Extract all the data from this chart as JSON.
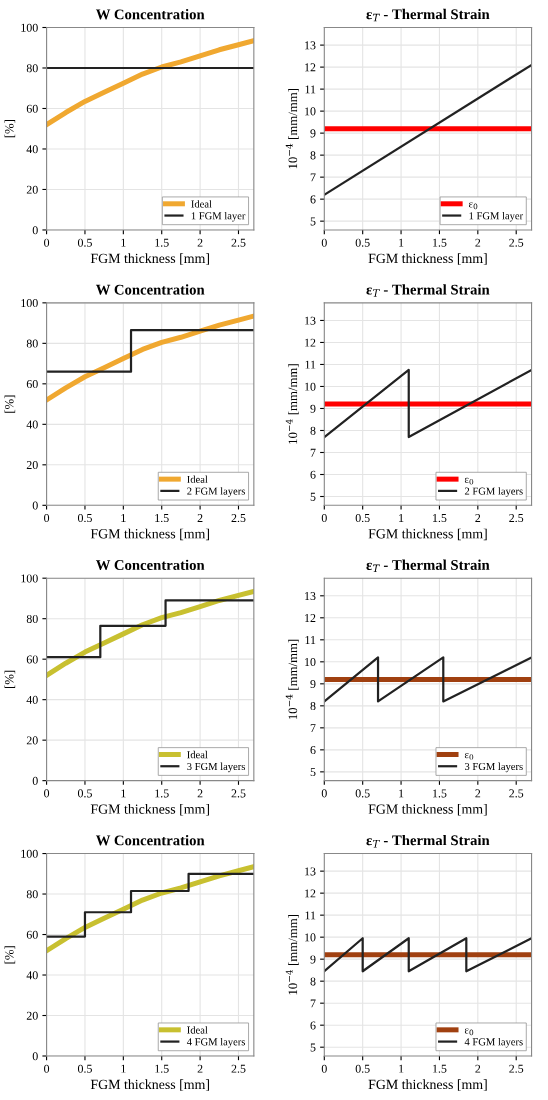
{
  "chart_data": [
    {
      "type": "line",
      "title": "W Concentration",
      "xlabel": "FGM thickness [mm]",
      "ylabel": "[%]",
      "xlim": [
        0,
        2.7
      ],
      "ylim": [
        0,
        100
      ],
      "xticks": [
        0,
        0.5,
        1,
        1.5,
        2,
        2.5
      ],
      "yticks": [
        0,
        20,
        40,
        60,
        80,
        100
      ],
      "grid": true,
      "legend": "bottom right",
      "series": [
        {
          "name": "Ideal",
          "color": "#f0a830",
          "x": [
            0,
            0.25,
            0.5,
            0.75,
            1,
            1.25,
            1.5,
            1.75,
            2,
            2.25,
            2.5,
            2.7
          ],
          "values": [
            52,
            58,
            63.5,
            68,
            72.5,
            77,
            80.5,
            83,
            86,
            89,
            91.5,
            93.5
          ]
        },
        {
          "name": "1 FGM layer",
          "color": "#222222",
          "x": [
            0,
            2.7
          ],
          "values": [
            80,
            80
          ]
        }
      ]
    },
    {
      "type": "line",
      "title": "ε$_{T}$ - Thermal Strain",
      "xlabel": "FGM thickness [mm]",
      "ylabel": "10$^{−4}$ [mm/mm]",
      "xlim": [
        0,
        2.7
      ],
      "ylim": [
        4.6,
        13.8
      ],
      "xticks": [
        0,
        0.5,
        1,
        1.5,
        2,
        2.5
      ],
      "yticks": [
        5,
        6,
        7,
        8,
        9,
        10,
        11,
        12,
        13
      ],
      "grid": true,
      "legend": "bottom right",
      "series": [
        {
          "name": "ε$_{0}$",
          "color": "#ff0000",
          "x": [
            0,
            2.7
          ],
          "values": [
            9.2,
            9.2
          ]
        },
        {
          "name": "1 FGM layer",
          "color": "#222222",
          "x": [
            0,
            2.7
          ],
          "values": [
            6.2,
            12.1
          ]
        }
      ]
    },
    {
      "type": "line",
      "title": "W Concentration",
      "xlabel": "FGM thickness [mm]",
      "ylabel": "[%]",
      "xlim": [
        0,
        2.7
      ],
      "ylim": [
        0,
        100
      ],
      "xticks": [
        0,
        0.5,
        1,
        1.5,
        2,
        2.5
      ],
      "yticks": [
        0,
        20,
        40,
        60,
        80,
        100
      ],
      "grid": true,
      "legend": "bottom right",
      "series": [
        {
          "name": "Ideal",
          "color": "#f0a830",
          "x": [
            0,
            0.25,
            0.5,
            0.75,
            1,
            1.25,
            1.5,
            1.75,
            2,
            2.25,
            2.5,
            2.7
          ],
          "values": [
            52,
            58,
            63.5,
            68,
            72.5,
            77,
            80.5,
            83,
            86,
            89,
            91.5,
            93.5
          ]
        },
        {
          "name": "2 FGM layers",
          "color": "#222222",
          "x": [
            0,
            1.1,
            1.1,
            2.7
          ],
          "values": [
            66,
            66,
            86.5,
            86.5
          ]
        }
      ]
    },
    {
      "type": "line",
      "title": "ε$_{T}$ - Thermal Strain",
      "xlabel": "FGM thickness [mm]",
      "ylabel": "10$^{−4}$ [mm/mm]",
      "xlim": [
        0,
        2.7
      ],
      "ylim": [
        4.6,
        13.8
      ],
      "xticks": [
        0,
        0.5,
        1,
        1.5,
        2,
        2.5
      ],
      "yticks": [
        5,
        6,
        7,
        8,
        9,
        10,
        11,
        12,
        13
      ],
      "grid": true,
      "legend": "bottom right",
      "series": [
        {
          "name": "ε$_{0}$",
          "color": "#ff0000",
          "x": [
            0,
            2.7
          ],
          "values": [
            9.2,
            9.2
          ]
        },
        {
          "name": "2 FGM layers",
          "color": "#222222",
          "x": [
            0,
            1.1,
            1.1,
            2.7
          ],
          "values": [
            7.7,
            10.75,
            7.7,
            10.75
          ]
        }
      ]
    },
    {
      "type": "line",
      "title": "W Concentration",
      "xlabel": "FGM thickness [mm]",
      "ylabel": "[%]",
      "xlim": [
        0,
        2.7
      ],
      "ylim": [
        0,
        100
      ],
      "xticks": [
        0,
        0.5,
        1,
        1.5,
        2,
        2.5
      ],
      "yticks": [
        0,
        20,
        40,
        60,
        80,
        100
      ],
      "grid": true,
      "legend": "bottom right",
      "series": [
        {
          "name": "Ideal",
          "color": "#c8c030",
          "x": [
            0,
            0.25,
            0.5,
            0.75,
            1,
            1.25,
            1.5,
            1.75,
            2,
            2.25,
            2.5,
            2.7
          ],
          "values": [
            52,
            58,
            63.5,
            68,
            72.5,
            77,
            80.5,
            83,
            86,
            89,
            91.5,
            93.5
          ]
        },
        {
          "name": "3 FGM layers",
          "color": "#222222",
          "x": [
            0,
            0.7,
            0.7,
            1.55,
            1.55,
            2.7
          ],
          "values": [
            61,
            61,
            76.5,
            76.5,
            89,
            89
          ]
        }
      ]
    },
    {
      "type": "line",
      "title": "ε$_{T}$ - Thermal Strain",
      "xlabel": "FGM thickness [mm]",
      "ylabel": "10$^{−4}$ [mm/mm]",
      "xlim": [
        0,
        2.7
      ],
      "ylim": [
        4.6,
        13.8
      ],
      "xticks": [
        0,
        0.5,
        1,
        1.5,
        2,
        2.5
      ],
      "yticks": [
        5,
        6,
        7,
        8,
        9,
        10,
        11,
        12,
        13
      ],
      "grid": true,
      "legend": "bottom right",
      "series": [
        {
          "name": "ε$_{0}$",
          "color": "#a04010",
          "x": [
            0,
            2.7
          ],
          "values": [
            9.2,
            9.2
          ]
        },
        {
          "name": "3 FGM layers",
          "color": "#222222",
          "x": [
            0,
            0.7,
            0.7,
            1.55,
            1.55,
            2.7
          ],
          "values": [
            8.2,
            10.2,
            8.2,
            10.2,
            8.2,
            10.2
          ]
        }
      ]
    },
    {
      "type": "line",
      "title": "W Concentration",
      "xlabel": "FGM thickness [mm]",
      "ylabel": "[%]",
      "xlim": [
        0,
        2.7
      ],
      "ylim": [
        0,
        100
      ],
      "xticks": [
        0,
        0.5,
        1,
        1.5,
        2,
        2.5
      ],
      "yticks": [
        0,
        20,
        40,
        60,
        80,
        100
      ],
      "grid": true,
      "legend": "bottom right",
      "series": [
        {
          "name": "Ideal",
          "color": "#c8c030",
          "x": [
            0,
            0.25,
            0.5,
            0.75,
            1,
            1.25,
            1.5,
            1.75,
            2,
            2.25,
            2.5,
            2.7
          ],
          "values": [
            52,
            58,
            63.5,
            68,
            72.5,
            77,
            80.5,
            83,
            86,
            89,
            91.5,
            93.5
          ]
        },
        {
          "name": "4 FGM layers",
          "color": "#222222",
          "x": [
            0,
            0.5,
            0.5,
            1.1,
            1.1,
            1.85,
            1.85,
            2.7
          ],
          "values": [
            59,
            59,
            71,
            71,
            81.5,
            81.5,
            90,
            90
          ]
        }
      ]
    },
    {
      "type": "line",
      "title": "ε$_{T}$ - Thermal Strain",
      "xlabel": "FGM thickness [mm]",
      "ylabel": "10$^{−4}$ [mm/mm]",
      "xlim": [
        0,
        2.7
      ],
      "ylim": [
        4.6,
        13.8
      ],
      "xticks": [
        0,
        0.5,
        1,
        1.5,
        2,
        2.5
      ],
      "yticks": [
        5,
        6,
        7,
        8,
        9,
        10,
        11,
        12,
        13
      ],
      "grid": true,
      "legend": "bottom right",
      "series": [
        {
          "name": "ε$_{0}$",
          "color": "#a04010",
          "x": [
            0,
            2.7
          ],
          "values": [
            9.2,
            9.2
          ]
        },
        {
          "name": "4 FGM layers",
          "color": "#222222",
          "x": [
            0,
            0.5,
            0.5,
            1.1,
            1.1,
            1.85,
            1.85,
            2.7
          ],
          "values": [
            8.45,
            9.95,
            8.45,
            9.95,
            8.45,
            9.95,
            8.45,
            9.95
          ]
        }
      ]
    }
  ]
}
